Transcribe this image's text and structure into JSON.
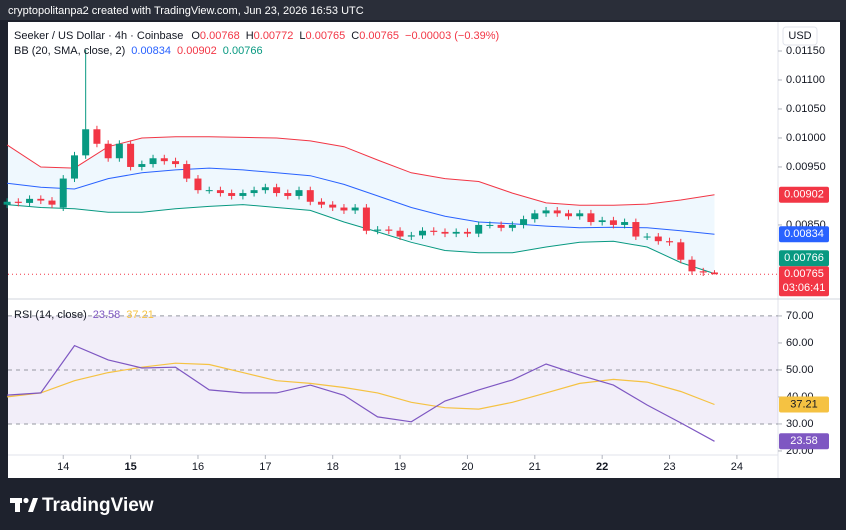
{
  "header": {
    "attribution": "cryptopolitanpa2 created with TradingView.com, Jun 23, 2026 16:53 UTC",
    "currency": "USD",
    "footer_brand": "TradingView"
  },
  "chart_data": [
    {
      "type": "candlestick",
      "title": "Seeker / US Dollar · 4h · Coinbase",
      "ohlc_labels": [
        "O",
        "H",
        "L",
        "C"
      ],
      "change": "−0.00003 (−0.39%)",
      "countdown": "03:06:41",
      "up_color": "#089981",
      "down_color": "#f23645",
      "xlim": [
        13.18,
        24.61
      ],
      "ylim": [
        0.00724,
        0.012
      ],
      "yticks": [
        {
          "value": 0.0115,
          "label": "0.01150"
        },
        {
          "value": 0.011,
          "label": "0.01100"
        },
        {
          "value": 0.0105,
          "label": "0.01050"
        },
        {
          "value": 0.01,
          "label": "0.01000"
        },
        {
          "value": 0.0095,
          "label": "0.00950"
        },
        {
          "value": 0.0085,
          "label": "0.00850"
        }
      ],
      "x": [
        13.167,
        13.333,
        13.5,
        13.667,
        13.833,
        14,
        14.167,
        14.333,
        14.5,
        14.667,
        14.833,
        15,
        15.167,
        15.333,
        15.5,
        15.667,
        15.833,
        16,
        16.167,
        16.333,
        16.5,
        16.667,
        16.833,
        17,
        17.167,
        17.333,
        17.5,
        17.667,
        17.833,
        18,
        18.167,
        18.333,
        18.5,
        18.667,
        18.833,
        19,
        19.167,
        19.333,
        19.5,
        19.667,
        19.833,
        20,
        20.167,
        20.333,
        20.5,
        20.667,
        20.833,
        21,
        21.167,
        21.333,
        21.5,
        21.667,
        21.833,
        22,
        22.167,
        22.333,
        22.5,
        22.667,
        22.833,
        23,
        23.167,
        23.333,
        23.5,
        23.667
      ],
      "open": [
        0.00885,
        0.0089,
        0.00888,
        0.00895,
        0.00892,
        0.0088,
        0.0093,
        0.0097,
        0.01015,
        0.0099,
        0.00965,
        0.0099,
        0.0095,
        0.00955,
        0.00965,
        0.0096,
        0.00955,
        0.0093,
        0.0091,
        0.0091,
        0.00905,
        0.009,
        0.00905,
        0.0091,
        0.00915,
        0.00905,
        0.009,
        0.0091,
        0.0089,
        0.00885,
        0.0088,
        0.00875,
        0.0088,
        0.0084,
        0.00842,
        0.0084,
        0.0083,
        0.00832,
        0.0084,
        0.00838,
        0.00835,
        0.00838,
        0.00835,
        0.0085,
        0.0085,
        0.00845,
        0.0085,
        0.0086,
        0.0087,
        0.00875,
        0.0087,
        0.00865,
        0.0087,
        0.00855,
        0.00858,
        0.0085,
        0.00855,
        0.0083,
        0.0083,
        0.00822,
        0.0082,
        0.0079,
        0.0077,
        0.00768
      ],
      "high": [
        0.00896,
        0.00896,
        0.00901,
        0.00901,
        0.00898,
        0.00936,
        0.00976,
        0.01152,
        0.01021,
        0.00996,
        0.00996,
        0.00996,
        0.00961,
        0.00971,
        0.00971,
        0.00966,
        0.00961,
        0.00936,
        0.00916,
        0.00916,
        0.00911,
        0.00911,
        0.00916,
        0.00921,
        0.00921,
        0.00911,
        0.00916,
        0.00916,
        0.00896,
        0.00891,
        0.00886,
        0.00886,
        0.00886,
        0.00848,
        0.00848,
        0.00846,
        0.00838,
        0.00846,
        0.00846,
        0.00844,
        0.00844,
        0.00844,
        0.00856,
        0.00856,
        0.00856,
        0.00856,
        0.00866,
        0.00876,
        0.00881,
        0.00881,
        0.00876,
        0.00876,
        0.00876,
        0.00864,
        0.00864,
        0.00861,
        0.00861,
        0.00836,
        0.00836,
        0.00828,
        0.00826,
        0.00796,
        0.00776,
        0.00772
      ],
      "low": [
        0.00879,
        0.00882,
        0.00882,
        0.00886,
        0.00879,
        0.00874,
        0.00924,
        0.00964,
        0.00984,
        0.00959,
        0.00959,
        0.00944,
        0.00944,
        0.00949,
        0.00954,
        0.00949,
        0.00924,
        0.00904,
        0.00904,
        0.00899,
        0.00894,
        0.00894,
        0.00899,
        0.00904,
        0.00899,
        0.00894,
        0.00894,
        0.00884,
        0.00879,
        0.00874,
        0.00869,
        0.00869,
        0.00834,
        0.00834,
        0.00834,
        0.00824,
        0.00824,
        0.00826,
        0.00832,
        0.00829,
        0.00829,
        0.00829,
        0.00829,
        0.00844,
        0.00839,
        0.00839,
        0.00844,
        0.00854,
        0.00864,
        0.00864,
        0.00859,
        0.00859,
        0.00849,
        0.00849,
        0.00844,
        0.00844,
        0.00824,
        0.00824,
        0.00816,
        0.00814,
        0.00784,
        0.00764,
        0.00762,
        0.00765
      ],
      "close": [
        0.0089,
        0.00888,
        0.00895,
        0.00892,
        0.00885,
        0.0093,
        0.0097,
        0.01015,
        0.0099,
        0.00965,
        0.0099,
        0.0095,
        0.00955,
        0.00965,
        0.0096,
        0.00955,
        0.0093,
        0.0091,
        0.0091,
        0.00905,
        0.009,
        0.00905,
        0.0091,
        0.00915,
        0.00905,
        0.009,
        0.0091,
        0.0089,
        0.00885,
        0.0088,
        0.00875,
        0.0088,
        0.0084,
        0.00842,
        0.0084,
        0.0083,
        0.00832,
        0.0084,
        0.00838,
        0.00835,
        0.00838,
        0.00835,
        0.0085,
        0.0085,
        0.00845,
        0.0085,
        0.0086,
        0.0087,
        0.00875,
        0.0087,
        0.00865,
        0.0087,
        0.00855,
        0.00858,
        0.0085,
        0.00855,
        0.0083,
        0.0083,
        0.00822,
        0.0082,
        0.0079,
        0.0077,
        0.00768,
        0.00765
      ],
      "overlay": {
        "label": "BB (20, SMA, close, 2)",
        "band_fill": "rgba(33,150,243,0.07)",
        "x": [
          13.167,
          13.667,
          14.167,
          14.667,
          15.167,
          15.667,
          16.167,
          16.667,
          17.167,
          17.667,
          18.167,
          18.667,
          19.167,
          19.667,
          20.167,
          20.667,
          21.167,
          21.667,
          22.167,
          22.667,
          23.167,
          23.667
        ],
        "series": [
          {
            "color": "#2962ff",
            "values": [
              0.00922,
              0.00915,
              0.00912,
              0.0093,
              0.0094,
              0.00945,
              0.00948,
              0.00945,
              0.0094,
              0.00935,
              0.0092,
              0.009,
              0.0088,
              0.00865,
              0.00855,
              0.00852,
              0.00848,
              0.00845,
              0.00846,
              0.00845,
              0.0084,
              0.00834
            ]
          },
          {
            "color": "#f23645",
            "values": [
              0.00988,
              0.0095,
              0.00948,
              0.00985,
              0.01,
              0.01002,
              0.01002,
              0.01001,
              0.01,
              0.00995,
              0.00985,
              0.00962,
              0.0094,
              0.0093,
              0.00925,
              0.00905,
              0.00888,
              0.00884,
              0.00884,
              0.00886,
              0.00893,
              0.00902
            ]
          },
          {
            "color": "#089981",
            "values": [
              0.00885,
              0.0088,
              0.00878,
              0.00872,
              0.00872,
              0.00878,
              0.00882,
              0.00885,
              0.0088,
              0.00875,
              0.00855,
              0.00838,
              0.0082,
              0.00806,
              0.00802,
              0.00802,
              0.00812,
              0.0082,
              0.00822,
              0.00812,
              0.00785,
              0.00766
            ]
          }
        ]
      }
    },
    {
      "type": "line",
      "label": "RSI (14, close)",
      "xlim": [
        13.18,
        24.61
      ],
      "ylim": [
        18.5,
        75.9
      ],
      "yticks": [
        {
          "value": 70,
          "label": "70.00"
        },
        {
          "value": 60,
          "label": "60.00"
        },
        {
          "value": 50,
          "label": "50.00"
        },
        {
          "value": 40,
          "label": "40.00"
        },
        {
          "value": 30,
          "label": "30.00"
        },
        {
          "value": 20,
          "label": "20.00"
        }
      ],
      "xticks": [
        14,
        15,
        16,
        17,
        18,
        19,
        20,
        21,
        22,
        23,
        24
      ],
      "xticks_bold": [
        15,
        22
      ],
      "levels": [
        70,
        50,
        30
      ],
      "band_fill": "rgba(126,87,194,0.10)",
      "x": [
        13.167,
        13.667,
        14.167,
        14.667,
        15.167,
        15.667,
        16.167,
        16.667,
        17.167,
        17.667,
        18.167,
        18.667,
        19.167,
        19.667,
        20.167,
        20.667,
        21.167,
        21.667,
        22.167,
        22.667,
        23.167,
        23.667
      ],
      "series": [
        {
          "color": "#7e57c2",
          "values": [
            40.7,
            41.5,
            59,
            53.7,
            50.7,
            51,
            42.6,
            41.5,
            41.5,
            44.4,
            40.6,
            32.6,
            30.8,
            38.5,
            42.6,
            46.3,
            52.2,
            48.1,
            44.4,
            37,
            30.4,
            23.58
          ]
        },
        {
          "color": "#f5c242",
          "values": [
            40,
            41.5,
            46,
            49,
            51,
            52.5,
            52,
            49,
            46,
            45,
            43.5,
            41.5,
            38,
            36,
            35.5,
            38,
            41.5,
            45,
            46.5,
            45.5,
            42,
            37.21
          ]
        }
      ]
    }
  ]
}
